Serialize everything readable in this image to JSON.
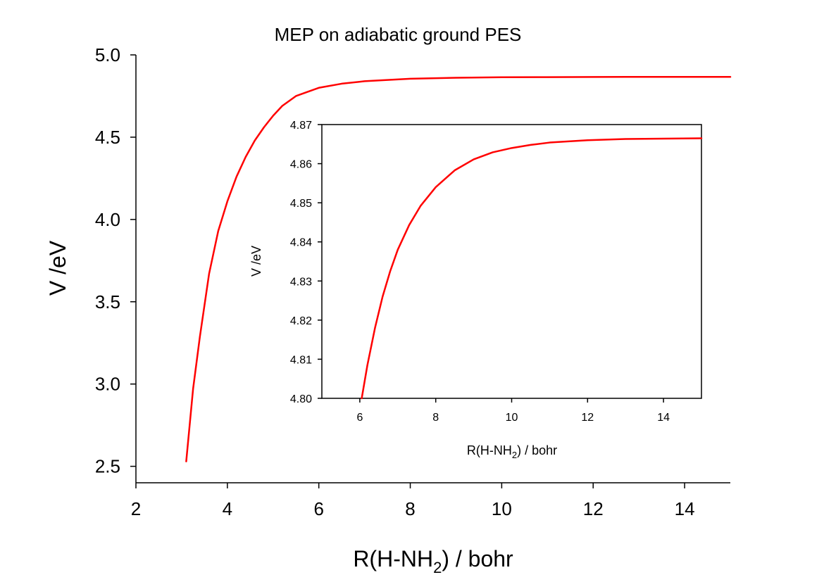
{
  "chart_data": [
    {
      "type": "line",
      "role": "main",
      "title": "MEP on adiabatic ground PES",
      "xlabel": "R(H-NH",
      "xlabel_sub": "2",
      "xlabel_suffix": ") / bohr",
      "ylabel": "V /eV",
      "xlim": [
        2,
        15
      ],
      "ylim": [
        2.4,
        5.0
      ],
      "xticks": [
        2,
        4,
        6,
        8,
        10,
        12,
        14
      ],
      "xtick_labels": [
        "2",
        "4",
        "6",
        "8",
        "10",
        "12",
        "14"
      ],
      "yticks": [
        2.5,
        3.0,
        3.5,
        4.0,
        4.5,
        5.0
      ],
      "ytick_labels": [
        "2.5",
        "3.0",
        "3.5",
        "4.0",
        "4.5",
        "5.0"
      ],
      "grid": false,
      "series": [
        {
          "color": "#ff0000",
          "x": [
            3.1,
            3.25,
            3.4,
            3.6,
            3.8,
            4.0,
            4.2,
            4.4,
            4.6,
            4.8,
            5.0,
            5.2,
            5.5,
            5.8,
            6.0,
            6.5,
            7.0,
            8.0,
            9.0,
            10.0,
            11.0,
            12.0,
            13.0,
            14.0,
            15.0
          ],
          "y": [
            2.53,
            2.97,
            3.29,
            3.67,
            3.93,
            4.11,
            4.26,
            4.38,
            4.48,
            4.56,
            4.63,
            4.69,
            4.75,
            4.78,
            4.8,
            4.825,
            4.84,
            4.855,
            4.861,
            4.864,
            4.865,
            4.866,
            4.8664,
            4.8665,
            4.8665
          ]
        }
      ]
    },
    {
      "type": "line",
      "role": "inset",
      "title": "",
      "xlabel": "R(H-NH",
      "xlabel_sub": "2",
      "xlabel_suffix": ") / bohr",
      "ylabel": "V /eV",
      "xlim": [
        5,
        15
      ],
      "ylim": [
        4.8,
        4.87
      ],
      "xticks": [
        6,
        8,
        10,
        12,
        14
      ],
      "xtick_labels": [
        "6",
        "8",
        "10",
        "12",
        "14"
      ],
      "yticks": [
        4.8,
        4.81,
        4.82,
        4.83,
        4.84,
        4.85,
        4.86,
        4.87
      ],
      "ytick_labels": [
        "4.80",
        "4.81",
        "4.82",
        "4.83",
        "4.84",
        "4.85",
        "4.86",
        "4.87"
      ],
      "grid": false,
      "series": [
        {
          "color": "#ff0000",
          "x": [
            6.05,
            6.2,
            6.4,
            6.6,
            6.8,
            7.0,
            7.3,
            7.6,
            8.0,
            8.5,
            9.0,
            9.5,
            10.0,
            10.5,
            11.0,
            12.0,
            13.0,
            14.0,
            15.0
          ],
          "y": [
            4.8,
            4.8085,
            4.818,
            4.826,
            4.8325,
            4.838,
            4.8443,
            4.8492,
            4.854,
            4.8583,
            4.8611,
            4.8629,
            4.864,
            4.8648,
            4.8654,
            4.866,
            4.8663,
            4.8664,
            4.8665
          ]
        }
      ]
    }
  ]
}
